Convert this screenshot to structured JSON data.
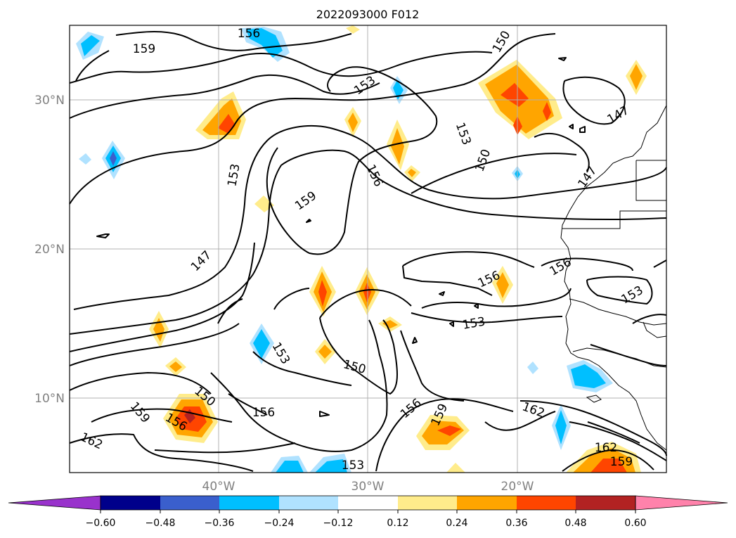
{
  "title": "2022093000 F012",
  "lat_labels": [
    "30°N",
    "20°N",
    "10°N"
  ],
  "lon_labels": [
    "40°W",
    "30°W",
    "20°W"
  ],
  "contour_levels": [
    "147",
    "150",
    "153",
    "156",
    "159",
    "162"
  ],
  "contour_labels": [
    {
      "text": "156"
    },
    {
      "text": "159"
    },
    {
      "text": "150"
    },
    {
      "text": "153"
    },
    {
      "text": "147"
    },
    {
      "text": "153"
    },
    {
      "text": "159"
    },
    {
      "text": "156"
    },
    {
      "text": "153"
    },
    {
      "text": "150"
    },
    {
      "text": "147"
    },
    {
      "text": "147"
    },
    {
      "text": "156"
    },
    {
      "text": "156"
    },
    {
      "text": "153"
    },
    {
      "text": "153"
    },
    {
      "text": "153"
    },
    {
      "text": "150"
    },
    {
      "text": "150"
    },
    {
      "text": "156"
    },
    {
      "text": "159"
    },
    {
      "text": "156"
    },
    {
      "text": "156"
    },
    {
      "text": "159"
    },
    {
      "text": "162"
    },
    {
      "text": "162"
    },
    {
      "text": "162"
    },
    {
      "text": "159"
    },
    {
      "text": "153"
    }
  ],
  "colorbar": {
    "ticks": [
      "−0.60",
      "−0.48",
      "−0.36",
      "−0.24",
      "−0.12",
      "0.12",
      "0.24",
      "0.36",
      "0.48",
      "0.60"
    ],
    "colors": [
      "#9932cc",
      "#00008b",
      "#3a5fcd",
      "#00bfff",
      "#b0e2ff",
      "#ffffff",
      "#ffec8b",
      "#ffa500",
      "#ff4500",
      "#b22222",
      "#ff82ab"
    ]
  }
}
